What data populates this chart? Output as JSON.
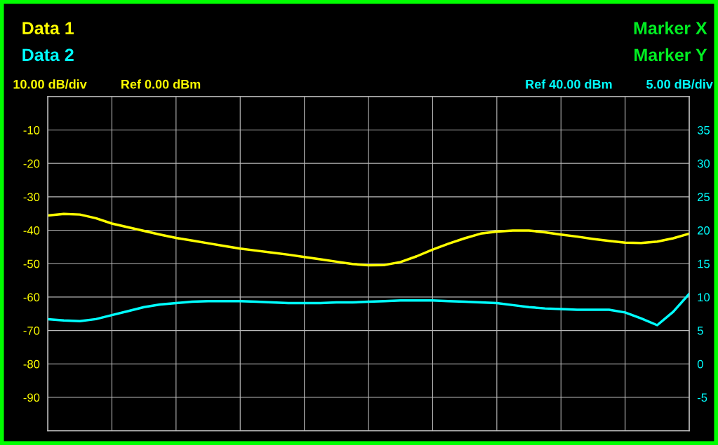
{
  "chart_data": {
    "type": "line",
    "ylabel": "10.00 dB/div",
    "y2label": "5.00 dB/div",
    "annotations": [
      "Marker X",
      "Marker Y",
      "Ref 0.00 dBm",
      "Ref 40.00 dBm"
    ],
    "categories": [
      null,
      null,
      null,
      null,
      null,
      null,
      null,
      null,
      null,
      null,
      null,
      null,
      null,
      null,
      null,
      null,
      null,
      null,
      null,
      null,
      null,
      null,
      null,
      null,
      null,
      null,
      null,
      null,
      null,
      null,
      null,
      null,
      null,
      null,
      null,
      null,
      null,
      null,
      null,
      null,
      null
    ],
    "ylim": [
      -100,
      0
    ],
    "yticks": [
      -90,
      -80,
      -70,
      -60,
      -50,
      -40,
      -30,
      -20,
      -10
    ],
    "y2lim": [
      -10,
      40
    ],
    "y2ticks": [
      -5,
      0,
      5,
      10,
      15,
      20,
      25,
      30,
      35
    ],
    "grid": true,
    "series": [
      {
        "name": "Data 1",
        "color": "#ffff00",
        "values": [
          -35.6,
          -35.1,
          -35.3,
          -36.4,
          -38.0,
          -39.1,
          -40.2,
          -41.3,
          -42.3,
          -43.1,
          -43.9,
          -44.7,
          -45.5,
          -46.1,
          -46.7,
          -47.3,
          -48.0,
          -48.7,
          -49.4,
          -50.1,
          -50.5,
          -50.4,
          -49.5,
          -47.8,
          -45.8,
          -44.0,
          -42.4,
          -41.0,
          -40.4,
          -40.1,
          -40.1,
          -40.6,
          -41.3,
          -41.9,
          -42.6,
          -43.2,
          -43.7,
          -43.8,
          -43.4,
          -42.4,
          -41.0
        ]
      },
      {
        "name": "Data 2",
        "color": "#00ffff",
        "axis": "y2",
        "values": [
          6.7,
          6.5,
          6.4,
          6.7,
          7.3,
          7.9,
          8.5,
          8.9,
          9.1,
          9.3,
          9.4,
          9.4,
          9.4,
          9.3,
          9.2,
          9.1,
          9.1,
          9.1,
          9.2,
          9.2,
          9.3,
          9.4,
          9.5,
          9.5,
          9.5,
          9.4,
          9.3,
          9.2,
          9.1,
          8.8,
          8.5,
          8.3,
          8.2,
          8.1,
          8.1,
          8.1,
          7.7,
          6.8,
          5.8,
          7.8,
          10.5
        ]
      }
    ]
  }
}
